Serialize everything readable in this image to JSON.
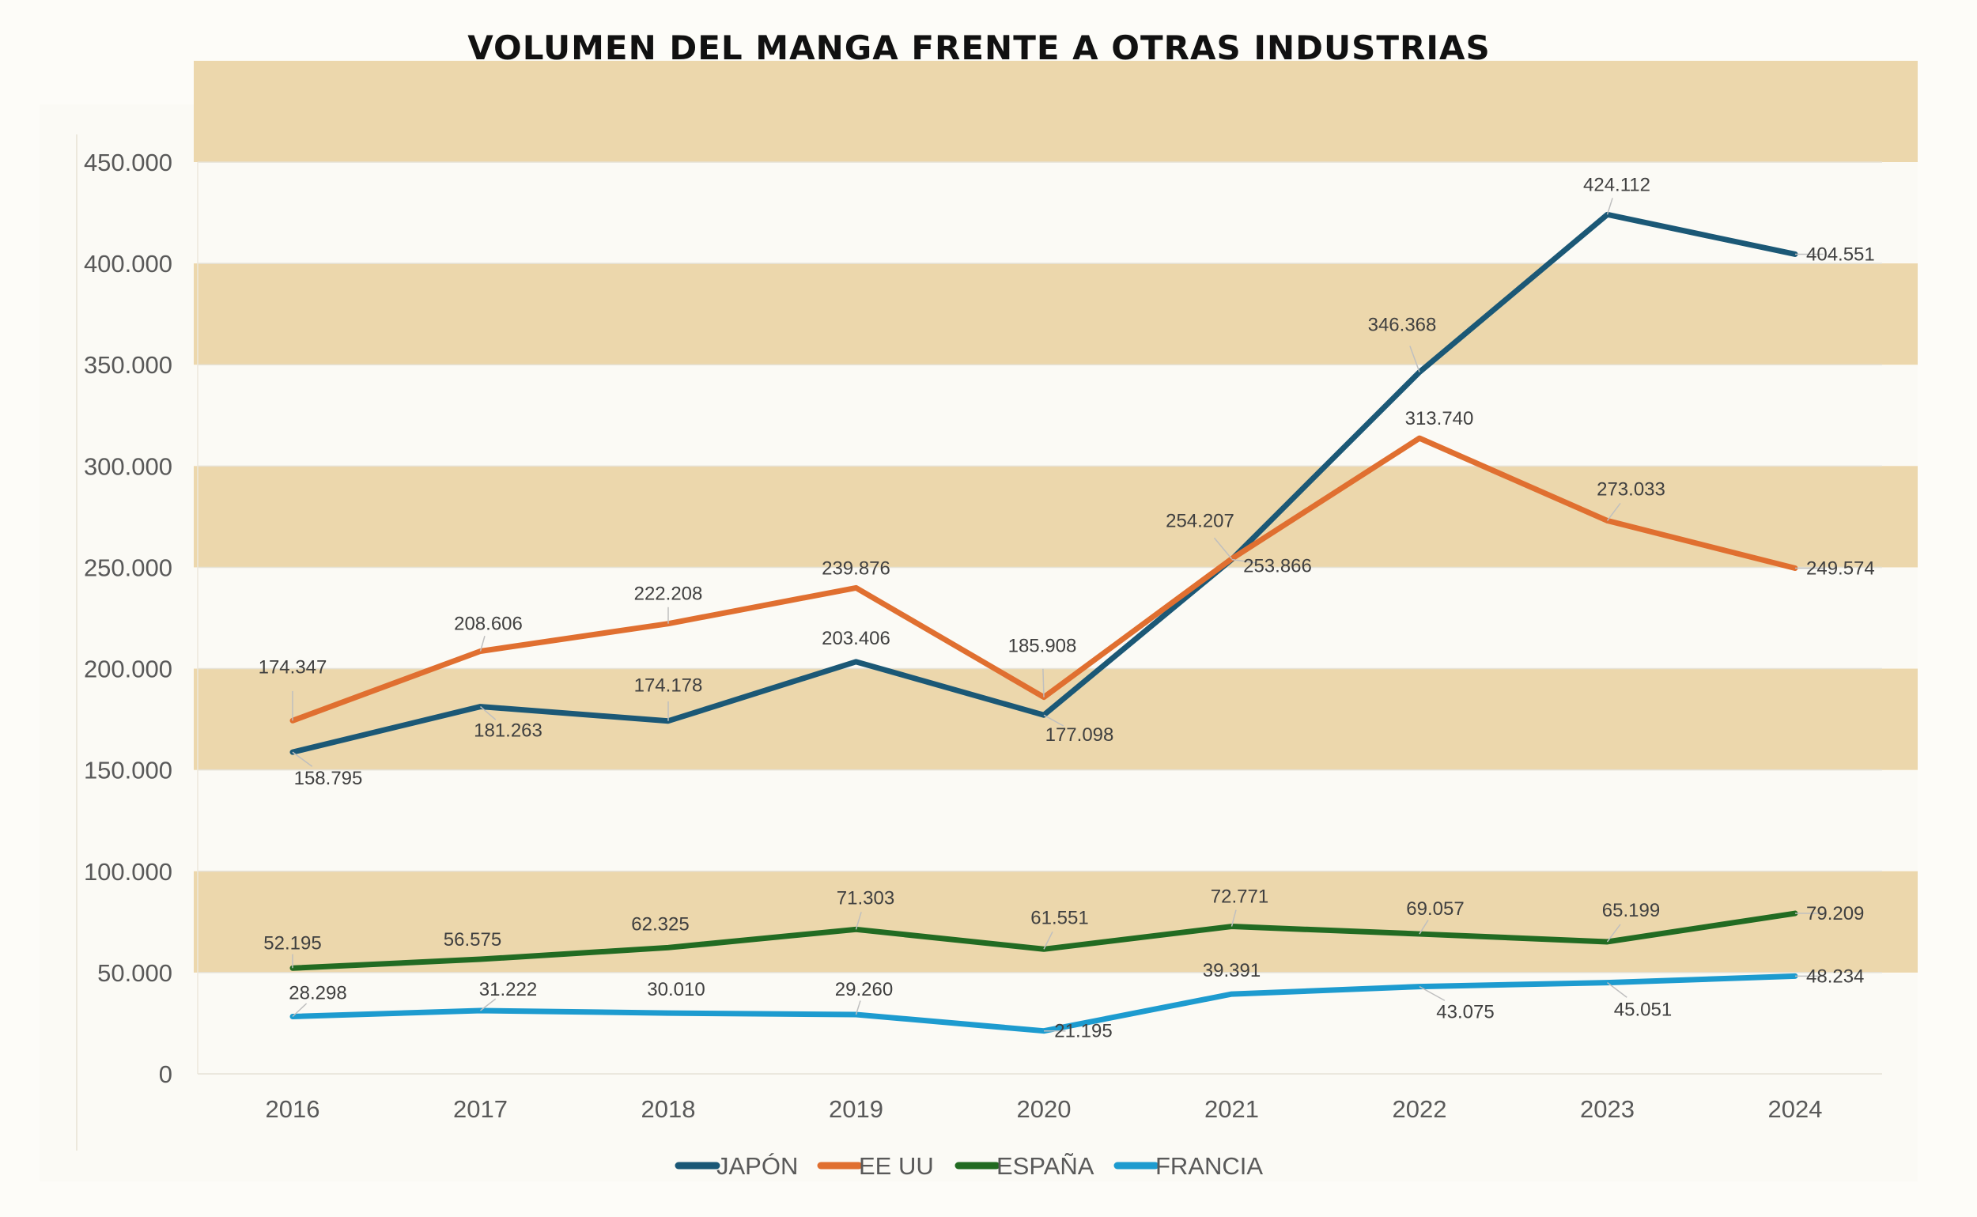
{
  "chart_data": {
    "type": "line",
    "title": "VOLUMEN DEL MANGA FRENTE A OTRAS INDUSTRIAS",
    "xlabel": "",
    "ylabel": "",
    "ylim": [
      0,
      450000
    ],
    "yticks": [
      "0",
      "50.000",
      "100.000",
      "150.000",
      "200.000",
      "250.000",
      "300.000",
      "350.000",
      "400.000",
      "450.000"
    ],
    "categories": [
      "2016",
      "2017",
      "2018",
      "2019",
      "2020",
      "2021",
      "2022",
      "2023",
      "2024"
    ],
    "legend_position": "bottom",
    "grid": true,
    "band_color": "#ecd7ac",
    "series": [
      {
        "name": "JAPÓN",
        "color": "#1b5876",
        "values": [
          158795,
          181263,
          174178,
          203406,
          177098,
          253866,
          346368,
          424112,
          404551
        ],
        "labels": [
          "158.795",
          "181.263",
          "174.178",
          "203.406",
          "177.098",
          "253.866",
          "346.368",
          "424.112",
          "404.551"
        ]
      },
      {
        "name": "EE UU",
        "color": "#e06f30",
        "values": [
          174347,
          208606,
          222208,
          239876,
          185908,
          254207,
          313740,
          273033,
          249574
        ],
        "labels": [
          "174.347",
          "208.606",
          "222.208",
          "239.876",
          "185.908",
          "254.207",
          "313.740",
          "273.033",
          "249.574"
        ]
      },
      {
        "name": "ESPAÑA",
        "color": "#226b22",
        "values": [
          52195,
          56575,
          62325,
          71303,
          61551,
          72771,
          69057,
          65199,
          79209
        ],
        "labels": [
          "52.195",
          "56.575",
          "62.325",
          "71.303",
          "61.551",
          "72.771",
          "69.057",
          "65.199",
          "79.209"
        ]
      },
      {
        "name": "FRANCIA",
        "color": "#1d9bcf",
        "values": [
          28298,
          31222,
          30010,
          29260,
          21195,
          39391,
          43075,
          45051,
          48234
        ],
        "labels": [
          "28.298",
          "31.222",
          "30.010",
          "29.260",
          "21.195",
          "39.391",
          "43.075",
          "45.051",
          "48.234"
        ]
      }
    ]
  }
}
